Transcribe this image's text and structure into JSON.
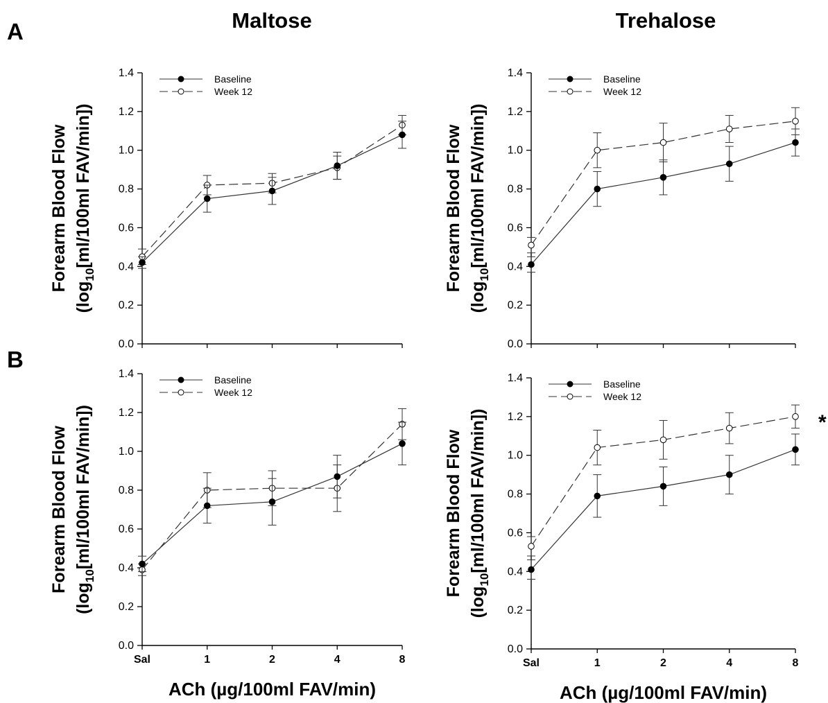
{
  "labels": {
    "col_left": "Maltose",
    "col_right": "Trehalose",
    "row_a": "A",
    "row_b": "B",
    "ylabel_line1": "Forearm Blood Flow",
    "ylabel_line2_pre": "(log",
    "ylabel_line2_sub": "10",
    "ylabel_line2_post": "[ml/100ml FAV/min])",
    "xlabel": "ACh (µg/100ml FAV/min)"
  },
  "chart_data": [
    {
      "type": "line",
      "title": "Maltose",
      "row": "A",
      "categories": [
        "Sal",
        "1",
        "2",
        "4",
        "8"
      ],
      "show_x_tick_labels": false,
      "ylim": [
        0,
        1.4
      ],
      "yticks": [
        "0.0",
        "0.2",
        "0.4",
        "0.6",
        "0.8",
        "1.0",
        "1.2",
        "1.4"
      ],
      "legend": "top-left",
      "grid": false,
      "significance": "",
      "series": [
        {
          "name": "Baseline",
          "values": [
            0.42,
            0.75,
            0.79,
            0.92,
            1.08
          ],
          "errors": [
            0.03,
            0.07,
            0.07,
            0.07,
            0.07
          ],
          "marker": "filled",
          "line": "solid"
        },
        {
          "name": "Week 12",
          "values": [
            0.45,
            0.82,
            0.83,
            0.91,
            1.13
          ],
          "errors": [
            0.04,
            0.05,
            0.05,
            0.06,
            0.05
          ],
          "marker": "open",
          "line": "dashed"
        }
      ]
    },
    {
      "type": "line",
      "title": "Trehalose",
      "row": "A",
      "categories": [
        "Sal",
        "1",
        "2",
        "4",
        "8"
      ],
      "show_x_tick_labels": false,
      "ylim": [
        0,
        1.4
      ],
      "yticks": [
        "0.0",
        "0.2",
        "0.4",
        "0.6",
        "0.8",
        "1.0",
        "1.2",
        "1.4"
      ],
      "legend": "top-left",
      "grid": false,
      "significance": "",
      "series": [
        {
          "name": "Baseline",
          "values": [
            0.41,
            0.8,
            0.86,
            0.93,
            1.04
          ],
          "errors": [
            0.04,
            0.09,
            0.09,
            0.09,
            0.07
          ],
          "marker": "filled",
          "line": "solid"
        },
        {
          "name": "Week 12",
          "values": [
            0.51,
            1.0,
            1.04,
            1.11,
            1.15
          ],
          "errors": [
            0.04,
            0.09,
            0.1,
            0.07,
            0.07
          ],
          "marker": "open",
          "line": "dashed"
        }
      ]
    },
    {
      "type": "line",
      "title": "Maltose",
      "row": "B",
      "categories": [
        "Sal",
        "1",
        "2",
        "4",
        "8"
      ],
      "show_x_tick_labels": true,
      "ylim": [
        0,
        1.4
      ],
      "yticks": [
        "0.0",
        "0.2",
        "0.4",
        "0.6",
        "0.8",
        "1.0",
        "1.2",
        "1.4"
      ],
      "legend": "top-left",
      "grid": false,
      "significance": "",
      "series": [
        {
          "name": "Baseline",
          "values": [
            0.42,
            0.72,
            0.74,
            0.87,
            1.04
          ],
          "errors": [
            0.04,
            0.09,
            0.12,
            0.11,
            0.11
          ],
          "marker": "filled",
          "line": "solid"
        },
        {
          "name": "Week 12",
          "values": [
            0.39,
            0.8,
            0.81,
            0.81,
            1.14
          ],
          "errors": [
            0.03,
            0.09,
            0.09,
            0.12,
            0.08
          ],
          "marker": "open",
          "line": "dashed"
        }
      ]
    },
    {
      "type": "line",
      "title": "Trehalose",
      "row": "B",
      "categories": [
        "Sal",
        "1",
        "2",
        "4",
        "8"
      ],
      "show_x_tick_labels": true,
      "ylim": [
        0,
        1.4
      ],
      "yticks": [
        "0.0",
        "0.2",
        "0.4",
        "0.6",
        "0.8",
        "1.0",
        "1.2",
        "1.4"
      ],
      "legend": "top-left",
      "grid": false,
      "significance": "*",
      "series": [
        {
          "name": "Baseline",
          "values": [
            0.41,
            0.79,
            0.84,
            0.9,
            1.03
          ],
          "errors": [
            0.05,
            0.11,
            0.1,
            0.1,
            0.08
          ],
          "marker": "filled",
          "line": "solid"
        },
        {
          "name": "Week 12",
          "values": [
            0.53,
            1.04,
            1.08,
            1.14,
            1.2
          ],
          "errors": [
            0.05,
            0.09,
            0.1,
            0.08,
            0.06
          ],
          "marker": "open",
          "line": "dashed"
        }
      ]
    }
  ]
}
